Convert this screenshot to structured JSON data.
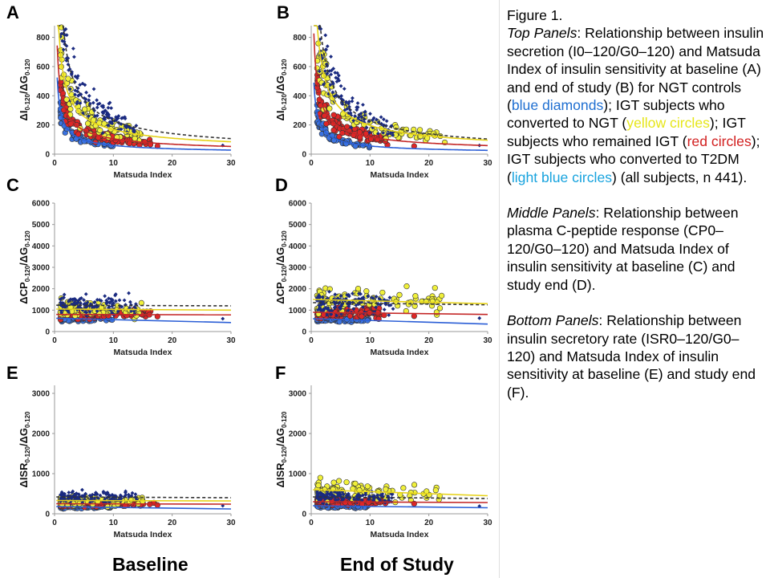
{
  "caption": {
    "figure_label": "Figure 1.",
    "top": {
      "title": "Top Panels",
      "t1": ": Relationship between insulin secretion (I0–120/G0–120) and Matsuda Index of insulin sensitivity at baseline (A) and end of study (B) for NGT controls (",
      "s1": "blue diamonds",
      "t2": "); IGT subjects who converted to NGT (",
      "s2": "yellow circles",
      "t3": "); IGT subjects who remained IGT (",
      "s3": "red circles",
      "t4": "); IGT subjects who converted to T2DM (",
      "s4": "light blue circles",
      "t5": ") (all subjects, n 441)."
    },
    "middle": {
      "title": "Middle Panels",
      "text": ": Relationship between plasma C-peptide response (CP0–120/G0–120) and Matsuda Index of insulin sensitivity at baseline (C) and study end (D)."
    },
    "bottom": {
      "title": "Bottom Panels",
      "text": ": Relationship between insulin secretory rate (ISR0–120/G0–120) and Matsuda Index of insulin sensitivity at baseline (E) and study end (F)."
    }
  },
  "column_labels": {
    "baseline": "Baseline",
    "end": "End of Study"
  },
  "colors": {
    "ngt": "#1a2a80",
    "igt_ngt": "#f0f03a",
    "igt_igt": "#e02626",
    "igt_t2dm": "#3a72e0",
    "curve_black": "#333333"
  },
  "chart_data": [
    {
      "panel": "A",
      "type": "scatter",
      "xlabel": "Matsuda Index",
      "ylabel_main": "ΔI",
      "ylabel_sub": "0-120",
      "ylabel_tail": "/ΔG",
      "ylabel_tail_sub": "0-120",
      "xlim": [
        0,
        30
      ],
      "ylim": [
        0,
        880
      ],
      "xticks": [
        0,
        10,
        20,
        30
      ],
      "yticks": [
        0,
        200,
        400,
        600,
        800
      ],
      "curves": [
        {
          "group": "ngt",
          "a": 1150,
          "b": 0.7,
          "dashed": true
        },
        {
          "group": "igt_ngt",
          "a": 700,
          "b": 0.62
        },
        {
          "group": "igt_igt",
          "a": 450,
          "b": 0.63
        },
        {
          "group": "igt_t2dm",
          "a": 300,
          "b": 0.7
        }
      ]
    },
    {
      "panel": "B",
      "type": "scatter",
      "xlabel": "Matsuda Index",
      "ylabel_main": "ΔI",
      "ylabel_sub": "0-120",
      "ylabel_tail": "/ΔG",
      "ylabel_tail_sub": "0-120",
      "xlim": [
        0,
        30
      ],
      "ylim": [
        0,
        880
      ],
      "xticks": [
        0,
        10,
        20,
        30
      ],
      "yticks": [
        0,
        200,
        400,
        600,
        800
      ],
      "curves": [
        {
          "group": "ngt",
          "a": 1200,
          "b": 0.72,
          "dashed": true
        },
        {
          "group": "igt_ngt",
          "a": 900,
          "b": 0.66
        },
        {
          "group": "igt_igt",
          "a": 500,
          "b": 0.63
        },
        {
          "group": "igt_t2dm",
          "a": 280,
          "b": 0.7
        }
      ]
    },
    {
      "panel": "C",
      "type": "scatter",
      "xlabel": "Matsuda Index",
      "ylabel_main": "ΔCP",
      "ylabel_sub": "0-120",
      "ylabel_tail": "/ΔG",
      "ylabel_tail_sub": "0-120",
      "xlim": [
        0,
        30
      ],
      "ylim": [
        0,
        6000
      ],
      "xticks": [
        0,
        10,
        20,
        30
      ],
      "yticks": [
        0,
        1000,
        2000,
        3000,
        4000,
        5000,
        6000
      ],
      "lines": [
        {
          "group": "ngt",
          "y0": 1230,
          "y1": 1200,
          "dashed": true
        },
        {
          "group": "igt_ngt",
          "y0": 1050,
          "y1": 1000
        },
        {
          "group": "igt_igt",
          "y0": 800,
          "y1": 780
        },
        {
          "group": "igt_t2dm",
          "y0": 620,
          "y1": 420
        }
      ]
    },
    {
      "panel": "D",
      "type": "scatter",
      "xlabel": "Matsuda Index",
      "ylabel_main": "ΔCP",
      "ylabel_sub": "0-120",
      "ylabel_tail": "/ΔG",
      "ylabel_tail_sub": "0-120",
      "xlim": [
        0,
        30
      ],
      "ylim": [
        0,
        6000
      ],
      "xticks": [
        0,
        10,
        20,
        30
      ],
      "yticks": [
        0,
        1000,
        2000,
        3000,
        4000,
        5000,
        6000
      ],
      "lines": [
        {
          "group": "ngt",
          "y0": 1350,
          "y1": 1250,
          "dashed": true
        },
        {
          "group": "igt_ngt",
          "y0": 1500,
          "y1": 1300
        },
        {
          "group": "igt_igt",
          "y0": 900,
          "y1": 800
        },
        {
          "group": "igt_t2dm",
          "y0": 600,
          "y1": 350
        }
      ]
    },
    {
      "panel": "E",
      "type": "scatter",
      "xlabel": "Matsuda Index",
      "ylabel_main": "ΔISR",
      "ylabel_sub": "0-120",
      "ylabel_tail": "/ΔG",
      "ylabel_tail_sub": "0-120",
      "xlim": [
        0,
        30
      ],
      "ylim": [
        0,
        3200
      ],
      "xticks": [
        0,
        10,
        20,
        30
      ],
      "yticks": [
        0,
        1000,
        2000,
        3000
      ],
      "lines": [
        {
          "group": "ngt",
          "y0": 420,
          "y1": 400,
          "dashed": true
        },
        {
          "group": "igt_ngt",
          "y0": 330,
          "y1": 320
        },
        {
          "group": "igt_igt",
          "y0": 250,
          "y1": 240
        },
        {
          "group": "igt_t2dm",
          "y0": 180,
          "y1": 120
        }
      ]
    },
    {
      "panel": "F",
      "type": "scatter",
      "xlabel": "Matsuda Index",
      "ylabel_main": "ΔISR",
      "ylabel_sub": "0-120",
      "ylabel_tail": "/ΔG",
      "ylabel_tail_sub": "0-120",
      "xlim": [
        0,
        30
      ],
      "ylim": [
        0,
        3200
      ],
      "xticks": [
        0,
        10,
        20,
        30
      ],
      "yticks": [
        0,
        1000,
        2000,
        3000
      ],
      "lines": [
        {
          "group": "ngt",
          "y0": 420,
          "y1": 380,
          "dashed": true
        },
        {
          "group": "igt_ngt",
          "y0": 600,
          "y1": 450
        },
        {
          "group": "igt_igt",
          "y0": 300,
          "y1": 280
        },
        {
          "group": "igt_t2dm",
          "y0": 200,
          "y1": 150
        }
      ]
    }
  ]
}
